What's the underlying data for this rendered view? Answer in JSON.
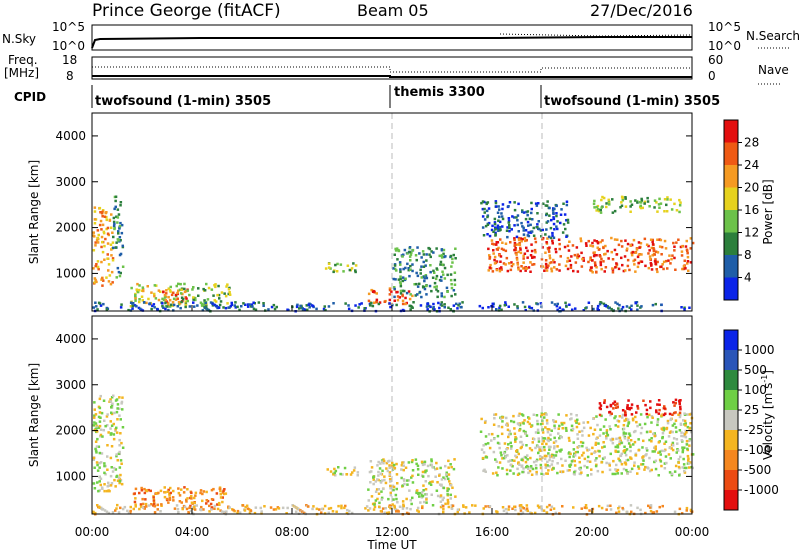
{
  "header": {
    "station": "Prince George (fitACF)",
    "beam": "Beam 05",
    "date": "27/Dec/2016"
  },
  "noise_panel": {
    "left_label": "N.Sky",
    "right_label": "N.Search",
    "left_ticks": [
      "10^5",
      "10^0"
    ],
    "right_ticks": [
      "10^5",
      "10^0"
    ]
  },
  "freq_panel": {
    "left_label_1": "Freq.",
    "left_label_2": "[MHz]",
    "right_label": "Nave",
    "left_ticks": [
      "18",
      "8"
    ],
    "right_ticks": [
      "60",
      "0"
    ]
  },
  "cpid_panel": {
    "label": "CPID",
    "segments": [
      {
        "name": "twofsound (1-min) 3505",
        "start_hour": 0
      },
      {
        "name": "themis 3300",
        "start_hour": 12
      },
      {
        "name": "twofsound (1-min) 3505",
        "start_hour": 18
      }
    ]
  },
  "axes": {
    "ylabel": "Slant Range [km]",
    "xlabel": "Time UT",
    "y_ticks": [
      "1000",
      "2000",
      "3000",
      "4000"
    ],
    "x_ticks": [
      "00:00",
      "04:00",
      "08:00",
      "12:00",
      "16:00",
      "20:00",
      "00:00"
    ]
  },
  "power_colorbar": {
    "label": "Power [dB]",
    "ticks": [
      "4",
      "8",
      "12",
      "16",
      "20",
      "24",
      "28"
    ],
    "colors": [
      "#0b24e8",
      "#1f5ea8",
      "#2c7f3c",
      "#6cc24a",
      "#e6d21e",
      "#f59a22",
      "#ef5a14",
      "#e30e0e"
    ]
  },
  "velocity_colorbar": {
    "label": "Velocity",
    "units": "[m s",
    "units_exp": "-1",
    "units_close": "]",
    "ticks": [
      "1000",
      "500",
      "100",
      "25",
      "-25",
      "-100",
      "-500",
      "-1000"
    ],
    "colors": [
      "#0b24e8",
      "#2a55b8",
      "#2e8a3e",
      "#6fcf45",
      "#c8c8c0",
      "#f4b520",
      "#f5871f",
      "#ec4b12",
      "#e30e0e"
    ]
  },
  "chart_data": {
    "type": "heatmap",
    "x_range_hours": [
      0,
      24
    ],
    "y_range_km": [
      180,
      4500
    ],
    "dashed_lines_hours": [
      12,
      18
    ],
    "power_blobs": [
      {
        "t0": 0.0,
        "t1": 0.8,
        "r0": 700,
        "r1": 2500,
        "level": 5
      },
      {
        "t0": 0.8,
        "t1": 1.2,
        "r0": 900,
        "r1": 2700,
        "level": 2
      },
      {
        "t0": 1.5,
        "t1": 3.5,
        "r0": 300,
        "r1": 800,
        "level": 4
      },
      {
        "t0": 2.8,
        "t1": 3.8,
        "r0": 350,
        "r1": 700,
        "level": 6
      },
      {
        "t0": 3.5,
        "t1": 5.5,
        "r0": 300,
        "r1": 800,
        "level": 3
      },
      {
        "t0": 9.3,
        "t1": 10.6,
        "r0": 1050,
        "r1": 1250,
        "level": 3
      },
      {
        "t0": 11.0,
        "t1": 12.8,
        "r0": 350,
        "r1": 700,
        "level": 6
      },
      {
        "t0": 12.0,
        "t1": 14.5,
        "r0": 500,
        "r1": 1600,
        "level": 2
      },
      {
        "t0": 15.8,
        "t1": 24.0,
        "r0": 1050,
        "r1": 1800,
        "level": 6
      },
      {
        "t0": 15.5,
        "t1": 19.0,
        "r0": 1800,
        "r1": 2600,
        "level": 1
      },
      {
        "t0": 20.0,
        "t1": 23.5,
        "r0": 2350,
        "r1": 2700,
        "level": 3
      },
      {
        "t0": 0.0,
        "t1": 24.0,
        "r0": 200,
        "r1": 400,
        "level": 1
      }
    ],
    "velocity_blobs": [
      {
        "t0": 0.0,
        "t1": 1.2,
        "r0": 700,
        "r1": 2800,
        "level": 4
      },
      {
        "t0": 1.5,
        "t1": 5.5,
        "r0": 300,
        "r1": 800,
        "level": 6
      },
      {
        "t0": 9.3,
        "t1": 10.6,
        "r0": 1050,
        "r1": 1250,
        "level": 4
      },
      {
        "t0": 11.0,
        "t1": 14.5,
        "r0": 350,
        "r1": 1400,
        "level": 4
      },
      {
        "t0": 15.5,
        "t1": 24.0,
        "r0": 1050,
        "r1": 2400,
        "level": 4
      },
      {
        "t0": 20.2,
        "t1": 23.5,
        "r0": 2350,
        "r1": 2700,
        "level": 8
      },
      {
        "t0": 0.0,
        "t1": 24.0,
        "r0": 200,
        "r1": 400,
        "level": 5
      }
    ]
  }
}
